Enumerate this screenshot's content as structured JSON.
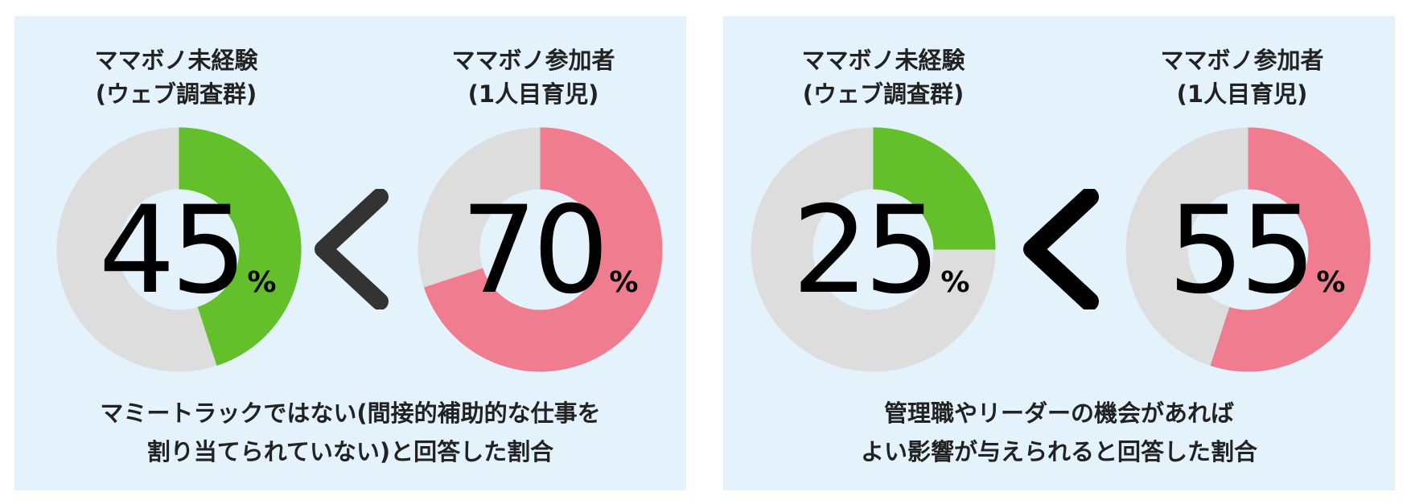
{
  "colors": {
    "background": "#e4f2fc",
    "track": "#dddddd",
    "green": "#64c02a",
    "pink": "#ef7c8f",
    "comparator": "#333333",
    "comparator_bold": "#000000"
  },
  "comparator": "<",
  "chart_data": [
    {
      "type": "pie",
      "unit": "%",
      "categories": [
        "ママボノ未経験 (ウェブ調査群)",
        "ママボノ参加者 (1人目育児)"
      ],
      "values": [
        45,
        70
      ],
      "caption": [
        "マミートラックではない(間接的補助的な仕事を",
        "割り当てられていない)と回答した割合"
      ],
      "groups": [
        {
          "label_line1": "ママボノ未経験",
          "label_line2": "(ウェブ調査群)",
          "value": 45,
          "color": "#64c02a"
        },
        {
          "label_line1": "ママボノ参加者",
          "label_line2": "(1人目育児)",
          "value": 70,
          "color": "#ef7c8f"
        }
      ]
    },
    {
      "type": "pie",
      "unit": "%",
      "categories": [
        "ママボノ未経験 (ウェブ調査群)",
        "ママボノ参加者 (1人目育児)"
      ],
      "values": [
        25,
        55
      ],
      "caption": [
        "管理職やリーダーの機会があれば",
        "よい影響が与えられると回答した割合"
      ],
      "groups": [
        {
          "label_line1": "ママボノ未経験",
          "label_line2": "(ウェブ調査群)",
          "value": 25,
          "color": "#64c02a"
        },
        {
          "label_line1": "ママボノ参加者",
          "label_line2": "(1人目育児)",
          "value": 55,
          "color": "#ef7c8f"
        }
      ]
    }
  ]
}
